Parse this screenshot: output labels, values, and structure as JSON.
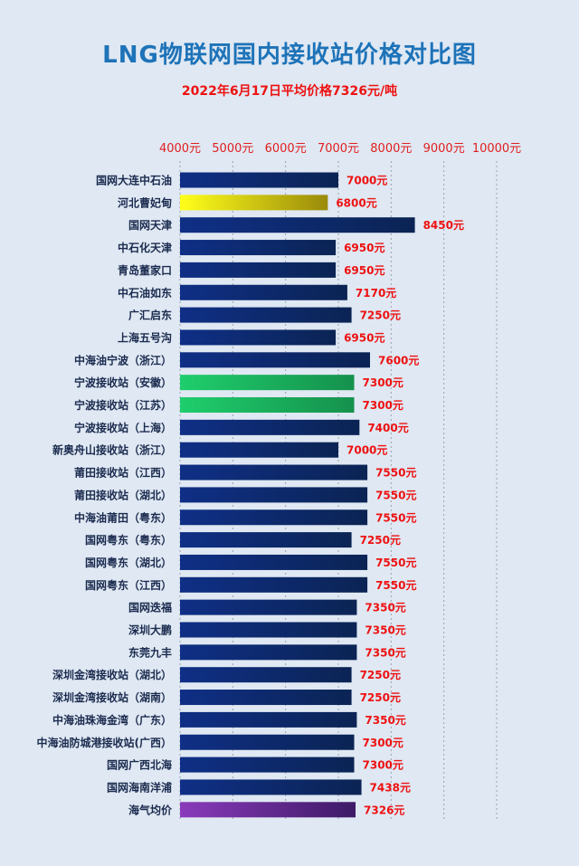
{
  "title": "LNG物联网国内接收站价格对比图",
  "subtitle": "2022年6月17日平均价格7326元/吨",
  "colors": {
    "bar_navy_start": "#0f2f86",
    "bar_navy_end": "#0b2454",
    "bar_yellow_start": "#ffff1a",
    "bar_yellow_end": "#9a8a0a",
    "bar_green_start": "#1fce6c",
    "bar_green_end": "#15914d",
    "bar_purple_start": "#8a3bbb",
    "bar_purple_end": "#3d1a66",
    "value_label": "#ee1111",
    "tick_label": "#e02020",
    "category_label": "#1b2b4f"
  },
  "chart_data": {
    "type": "bar",
    "orientation": "horizontal",
    "x_axis_position": "top",
    "xlim": [
      4000,
      10000
    ],
    "xticks": [
      4000,
      5000,
      6000,
      7000,
      8000,
      9000,
      10000
    ],
    "xtick_labels": [
      "4000元",
      "5000元",
      "6000元",
      "7000元",
      "8000元",
      "9000元",
      "10000元"
    ],
    "grid": true,
    "categories": [
      "国网大连中石油",
      "河北曹妃甸",
      "国网天津",
      "中石化天津",
      "青岛董家口",
      "中石油如东",
      "广汇启东",
      "上海五号沟",
      "中海油宁波（浙江）",
      "宁波接收站（安徽）",
      "宁波接收站（江苏）",
      "宁波接收站（上海）",
      "新奥舟山接收站（浙江）",
      "莆田接收站（江西）",
      "莆田接收站（湖北）",
      "中海油莆田（粤东）",
      "国网粤东（粤东）",
      "国网粤东（湖北）",
      "国网粤东（江西）",
      "国网迭福",
      "深圳大鹏",
      "东莞九丰",
      "深圳金湾接收站（湖北）",
      "深圳金湾接收站（湖南）",
      "中海油珠海金湾（广东）",
      "中海油防城港接收站(广西）",
      "国网广西北海",
      "国网海南洋浦",
      "海气均价"
    ],
    "values": [
      7000,
      6800,
      8450,
      6950,
      6950,
      7170,
      7250,
      6950,
      7600,
      7300,
      7300,
      7400,
      7000,
      7550,
      7550,
      7550,
      7250,
      7550,
      7550,
      7350,
      7350,
      7350,
      7250,
      7250,
      7350,
      7300,
      7300,
      7438,
      7326
    ],
    "value_labels": [
      "7000元",
      "6800元",
      "8450元",
      "6950元",
      "6950元",
      "7170元",
      "7250元",
      "6950元",
      "7600元",
      "7300元",
      "7300元",
      "7400元",
      "7000元",
      "7550元",
      "7550元",
      "7550元",
      "7250元",
      "7550元",
      "7550元",
      "7350元",
      "7350元",
      "7350元",
      "7250元",
      "7250元",
      "7350元",
      "7300元",
      "7300元",
      "7438元",
      "7326元"
    ],
    "bar_colors": [
      "navy",
      "yellow",
      "navy",
      "navy",
      "navy",
      "navy",
      "navy",
      "navy",
      "navy",
      "green",
      "green",
      "navy",
      "navy",
      "navy",
      "navy",
      "navy",
      "navy",
      "navy",
      "navy",
      "navy",
      "navy",
      "navy",
      "navy",
      "navy",
      "navy",
      "navy",
      "navy",
      "navy",
      "purple"
    ]
  }
}
